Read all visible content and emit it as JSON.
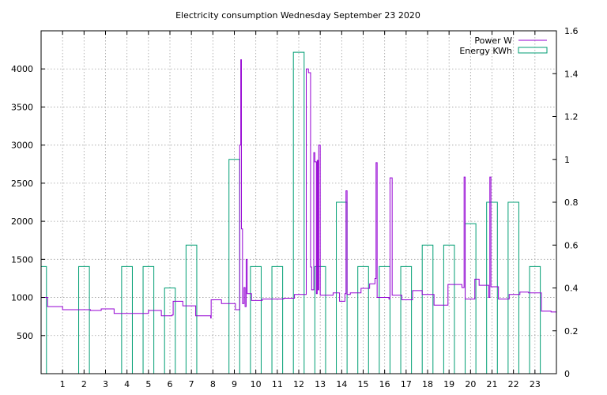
{
  "chart_data": {
    "type": "line",
    "title": "Electricity consumption Wednesday September 23 2020",
    "x": {
      "range": [
        0,
        24
      ],
      "ticks": [
        1,
        2,
        3,
        4,
        5,
        6,
        7,
        8,
        9,
        10,
        11,
        12,
        13,
        14,
        15,
        16,
        17,
        18,
        19,
        20,
        21,
        22,
        23
      ]
    },
    "y_left": {
      "range": [
        0,
        4500
      ],
      "ticks": [
        500,
        1000,
        1500,
        2000,
        2500,
        3000,
        3500,
        4000
      ]
    },
    "y_right": {
      "range": [
        0,
        1.6
      ],
      "ticks": [
        "0",
        "0.2",
        "0.4",
        "0.6",
        "0.8",
        "1",
        "1.2",
        "1.4",
        "1.6"
      ]
    },
    "grid": true,
    "legend": {
      "position": "top-right",
      "entries": [
        "Power W",
        "Energy KWh"
      ]
    },
    "series": [
      {
        "name": "Energy KWh",
        "axis": "right",
        "style": "boxes",
        "color": "#009e73",
        "x": [
          0,
          2,
          4,
          5,
          6,
          7,
          9,
          10,
          11,
          12,
          13,
          14,
          15,
          16,
          17,
          18,
          19,
          20,
          21,
          22,
          23
        ],
        "values": [
          0.5,
          0.5,
          0.5,
          0.5,
          0.4,
          0.6,
          1.0,
          0.5,
          0.5,
          1.5,
          0.5,
          0.8,
          0.5,
          0.5,
          0.5,
          0.6,
          0.6,
          0.7,
          0.8,
          0.8,
          0.5
        ]
      },
      {
        "name": "Power W",
        "axis": "left",
        "style": "steps",
        "color": "#9400d3",
        "points": [
          [
            0,
            1000
          ],
          [
            0.3,
            880
          ],
          [
            1,
            840
          ],
          [
            2.3,
            830
          ],
          [
            2.8,
            850
          ],
          [
            3.4,
            790
          ],
          [
            4.6,
            790
          ],
          [
            5,
            830
          ],
          [
            5.6,
            760
          ],
          [
            6.1,
            770
          ],
          [
            6.15,
            950
          ],
          [
            6.6,
            890
          ],
          [
            7.2,
            760
          ],
          [
            7.9,
            730
          ],
          [
            7.92,
            970
          ],
          [
            8.4,
            920
          ],
          [
            9.05,
            840
          ],
          [
            9.25,
            3000
          ],
          [
            9.3,
            4120
          ],
          [
            9.33,
            1900
          ],
          [
            9.38,
            920
          ],
          [
            9.45,
            1130
          ],
          [
            9.5,
            880
          ],
          [
            9.55,
            1500
          ],
          [
            9.6,
            1050
          ],
          [
            9.8,
            960
          ],
          [
            10.3,
            980
          ],
          [
            11.3,
            990
          ],
          [
            11.8,
            1040
          ],
          [
            12.35,
            4000
          ],
          [
            12.45,
            3950
          ],
          [
            12.55,
            1400
          ],
          [
            12.6,
            1100
          ],
          [
            12.7,
            2900
          ],
          [
            12.75,
            2780
          ],
          [
            12.82,
            1050
          ],
          [
            12.86,
            2800
          ],
          [
            12.9,
            1100
          ],
          [
            12.93,
            3000
          ],
          [
            13.0,
            1030
          ],
          [
            13.6,
            1060
          ],
          [
            13.9,
            950
          ],
          [
            14.15,
            1050
          ],
          [
            14.2,
            2400
          ],
          [
            14.25,
            1040
          ],
          [
            14.4,
            1060
          ],
          [
            14.9,
            1120
          ],
          [
            15.3,
            1180
          ],
          [
            15.55,
            1250
          ],
          [
            15.6,
            2770
          ],
          [
            15.65,
            1000
          ],
          [
            16.2,
            980
          ],
          [
            16.25,
            2570
          ],
          [
            16.35,
            1030
          ],
          [
            16.8,
            970
          ],
          [
            17.3,
            1090
          ],
          [
            17.75,
            1040
          ],
          [
            18.3,
            900
          ],
          [
            18.95,
            1170
          ],
          [
            19.6,
            1130
          ],
          [
            19.7,
            2580
          ],
          [
            19.75,
            980
          ],
          [
            20.2,
            1240
          ],
          [
            20.4,
            1160
          ],
          [
            20.85,
            1000
          ],
          [
            20.9,
            2580
          ],
          [
            20.95,
            1140
          ],
          [
            21.3,
            980
          ],
          [
            21.8,
            1040
          ],
          [
            22.3,
            1070
          ],
          [
            22.7,
            1060
          ],
          [
            23.3,
            820
          ],
          [
            23.75,
            810
          ],
          [
            24,
            900
          ]
        ]
      }
    ]
  }
}
